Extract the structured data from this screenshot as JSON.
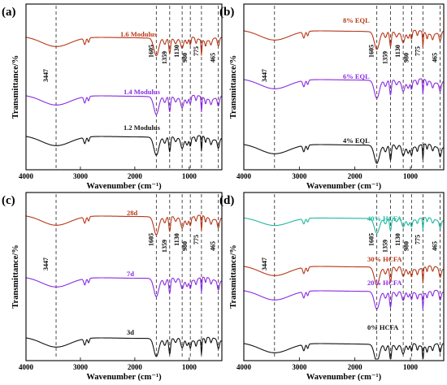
{
  "colors": {
    "black": "#111111",
    "purple": "#8a2be2",
    "red": "#b83818",
    "teal": "#20b8a0"
  },
  "chart_data": [
    {
      "type": "line",
      "panel_label": "(a)",
      "xlabel": "Wavenumber (cm⁻¹)",
      "ylabel": "Transmittance/%",
      "xlim": [
        4000,
        400
      ],
      "x_reversed": true,
      "x_ticks": [
        "4000",
        "3000",
        "2000",
        "1000"
      ],
      "peak_annotations": [
        "3447",
        "1605",
        "1359",
        "1130",
        "980",
        "775",
        "465"
      ],
      "series": [
        {
          "name": "1.6 Modulus",
          "color": "red"
        },
        {
          "name": "1.4 Modulus",
          "color": "purple"
        },
        {
          "name": "1.2 Modulus",
          "color": "black"
        }
      ]
    },
    {
      "type": "line",
      "panel_label": "(b)",
      "xlabel": "Wavenumber (cm⁻¹)",
      "ylabel": "Transmittance/%",
      "xlim": [
        4000,
        400
      ],
      "x_reversed": true,
      "x_ticks": [
        "4000",
        "3000",
        "2000",
        "1000"
      ],
      "peak_annotations": [
        "3447",
        "1605",
        "1359",
        "1130",
        "980",
        "775",
        "465"
      ],
      "series": [
        {
          "name": "8% EQL",
          "color": "red"
        },
        {
          "name": "6% EQL",
          "color": "purple"
        },
        {
          "name": "4% EQL",
          "color": "black"
        }
      ]
    },
    {
      "type": "line",
      "panel_label": "(c)",
      "xlabel": "Wavenumber (cm⁻¹)",
      "ylabel": "Transmittance/%",
      "xlim": [
        4000,
        400
      ],
      "x_reversed": true,
      "x_ticks": [
        "4000",
        "3000",
        "2000",
        "1000"
      ],
      "peak_annotations": [
        "3447",
        "1605",
        "1359",
        "1130",
        "980",
        "775",
        "465"
      ],
      "series": [
        {
          "name": "28d",
          "color": "red"
        },
        {
          "name": "7d",
          "color": "purple"
        },
        {
          "name": "3d",
          "color": "black"
        }
      ]
    },
    {
      "type": "line",
      "panel_label": "(d)",
      "xlabel": "Wavenumber (cm⁻¹)",
      "ylabel": "Transmittance/%",
      "xlim": [
        4000,
        400
      ],
      "x_reversed": true,
      "x_ticks": [
        "4000",
        "3000",
        "2000",
        "1000"
      ],
      "peak_annotations": [
        "3447",
        "1605",
        "1359",
        "1130",
        "980",
        "775",
        "465"
      ],
      "series": [
        {
          "name": "40% HCFA",
          "color": "teal"
        },
        {
          "name": "30% HCFA",
          "color": "red"
        },
        {
          "name": "20% HCFA",
          "color": "purple"
        },
        {
          "name": "0% HCFA",
          "color": "black"
        }
      ]
    }
  ]
}
